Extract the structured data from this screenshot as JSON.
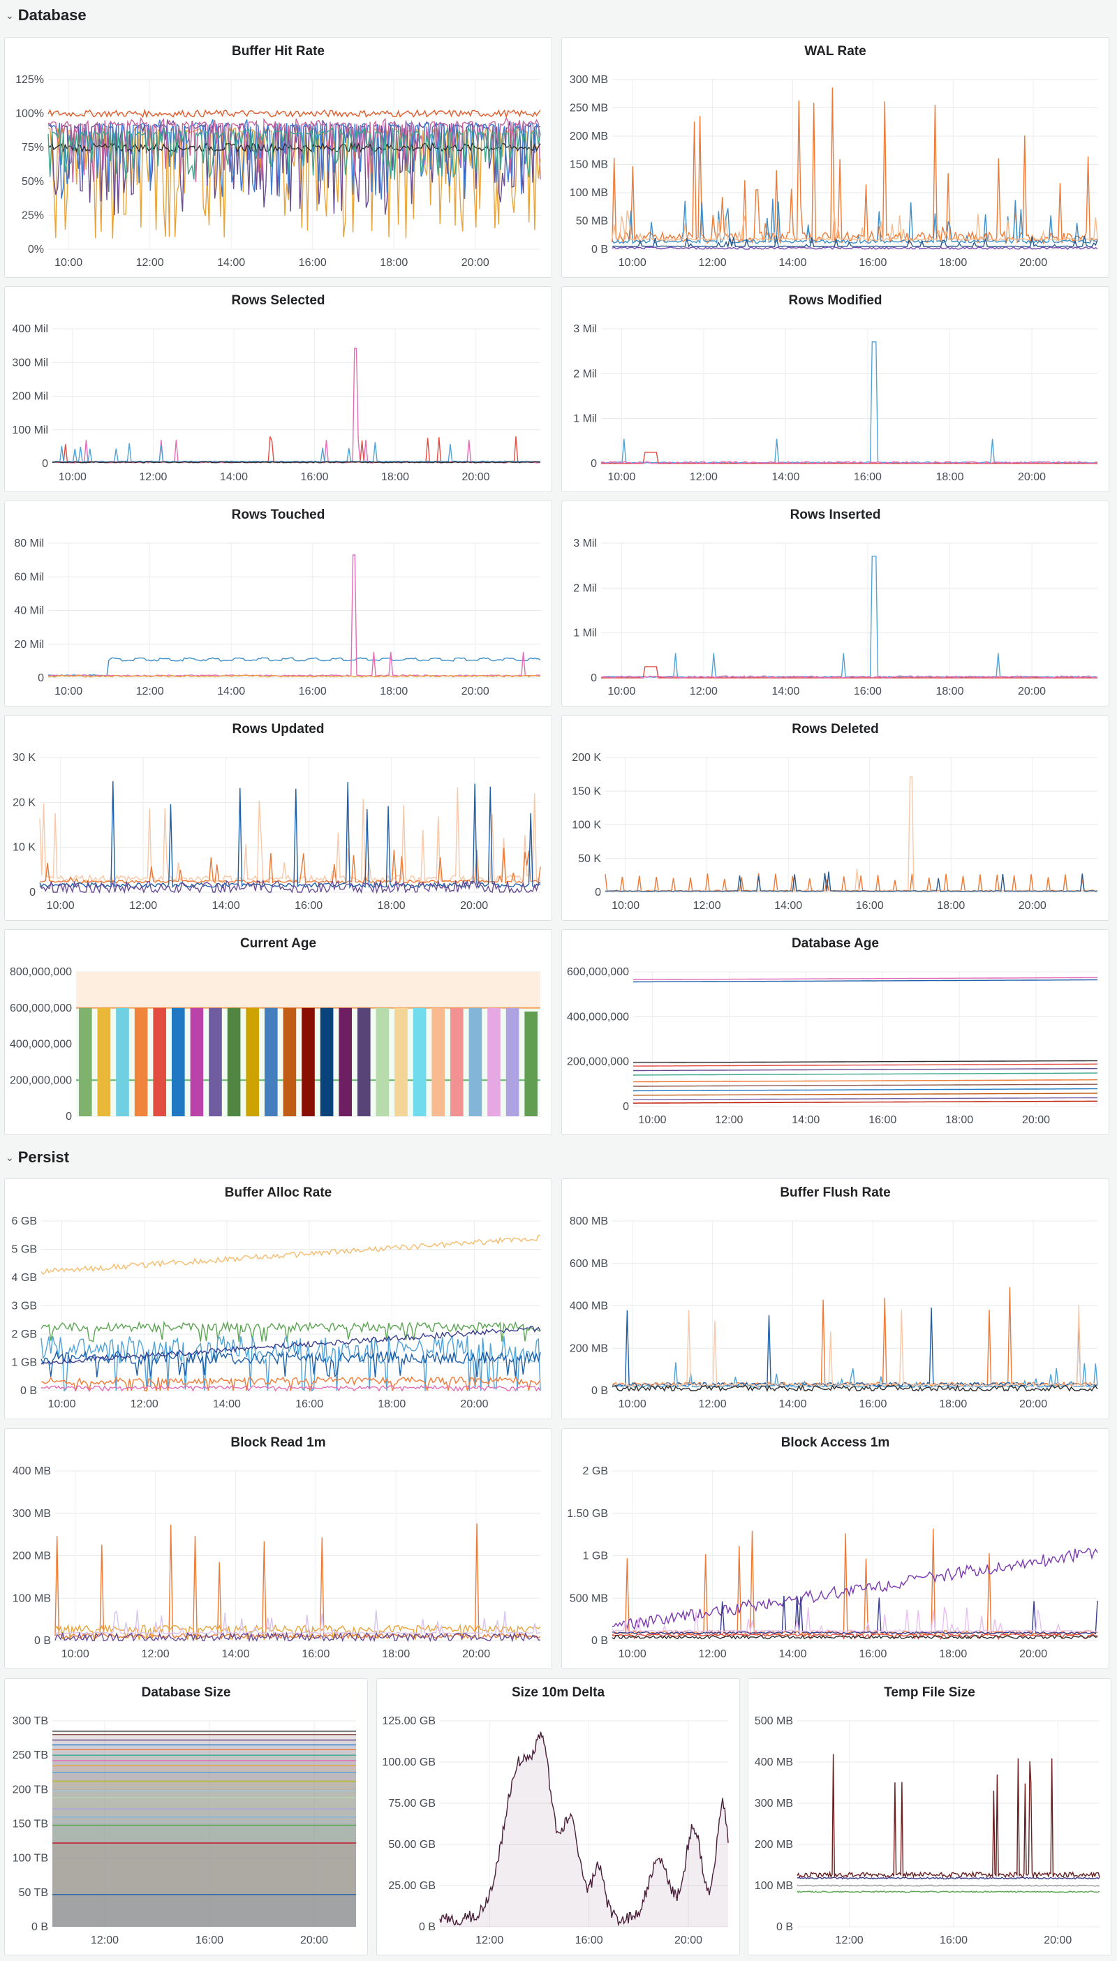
{
  "rows": [
    {
      "title": "Database",
      "chevron_icon": "chevron-down-icon"
    },
    {
      "title": "Persist",
      "chevron_icon": "chevron-down-icon"
    }
  ],
  "chart_data": [
    {
      "id": "p1",
      "type": "line",
      "title": "Buffer Hit Rate",
      "yticks": [
        "0%",
        "25%",
        "50%",
        "75%",
        "100%",
        "125%"
      ],
      "ylim": [
        0,
        125
      ],
      "xticks": [
        "10:00",
        "12:00",
        "14:00",
        "16:00",
        "18:00",
        "20:00"
      ],
      "xlim": [
        9.5,
        21.6
      ],
      "series": [
        {
          "color": "#e8a33a",
          "base": 92,
          "amp": 85,
          "spikes": "down"
        },
        {
          "color": "#6a4c93",
          "base": 95,
          "amp": 70,
          "spikes": "down"
        },
        {
          "color": "#3a7bd5",
          "base": 96,
          "amp": 60,
          "spikes": "down"
        },
        {
          "color": "#c9639b",
          "base": 97,
          "amp": 50,
          "spikes": "down"
        },
        {
          "color": "#2f2f2f",
          "base": 75,
          "amp": 6,
          "spikes": "none"
        },
        {
          "color": "#e05c2b",
          "base": 100,
          "amp": 5,
          "spikes": "none"
        },
        {
          "color": "#3ca58b",
          "base": 90,
          "amp": 40,
          "spikes": "down"
        }
      ]
    },
    {
      "id": "p2",
      "type": "line",
      "title": "WAL Rate",
      "yticks": [
        "0 B",
        "50 MB",
        "100 MB",
        "150 MB",
        "200 MB",
        "250 MB",
        "300 MB"
      ],
      "ylim": [
        0,
        300
      ],
      "xticks": [
        "10:00",
        "12:00",
        "14:00",
        "16:00",
        "18:00",
        "20:00"
      ],
      "xlim": [
        9.5,
        21.6
      ],
      "series": [
        {
          "color": "#ee7a36",
          "base": 8,
          "amp": 280,
          "spikes": "up"
        },
        {
          "color": "#3d8fc9",
          "base": 10,
          "amp": 80,
          "spikes": "up"
        },
        {
          "color": "#f5bc8e",
          "base": 15,
          "amp": 60,
          "spikes": "up"
        },
        {
          "color": "#2b5a8c",
          "base": 4,
          "amp": 20,
          "spikes": "up"
        },
        {
          "color": "#7a4ab0",
          "base": 2,
          "amp": 4,
          "spikes": "none"
        }
      ]
    },
    {
      "id": "p3",
      "type": "line",
      "title": "Rows Selected",
      "yticks": [
        "0",
        "100 Mil",
        "200 Mil",
        "300 Mil",
        "400 Mil"
      ],
      "ylim": [
        0,
        400
      ],
      "xticks": [
        "10:00",
        "12:00",
        "14:00",
        "16:00",
        "18:00",
        "20:00"
      ],
      "xlim": [
        9.5,
        21.6
      ],
      "series": [
        {
          "color": "#e24d42",
          "base": 3,
          "amp": 90,
          "spikes": "rare"
        },
        {
          "color": "#e36cb6",
          "base": 2,
          "amp": 340,
          "spikes": "one"
        },
        {
          "color": "#4fa3d8",
          "base": 5,
          "amp": 60,
          "spikes": "rare"
        },
        {
          "color": "#2f2f2f",
          "base": 4,
          "amp": 3,
          "spikes": "none"
        }
      ]
    },
    {
      "id": "p4",
      "type": "line",
      "title": "Rows Modified",
      "yticks": [
        "0",
        "1 Mil",
        "2 Mil",
        "3 Mil"
      ],
      "ylim": [
        0,
        3
      ],
      "xticks": [
        "10:00",
        "12:00",
        "14:00",
        "16:00",
        "18:00",
        "20:00"
      ],
      "xlim": [
        9.5,
        21.6
      ],
      "series": [
        {
          "color": "#4fa3d8",
          "base": 0.01,
          "amp": 2.7,
          "spikes": "one"
        },
        {
          "color": "#e24d42",
          "base": 0.0,
          "amp": 0.25,
          "spikes": "bump"
        },
        {
          "color": "#e36cb6",
          "base": 0.02,
          "amp": 0.05,
          "spikes": "none"
        }
      ]
    },
    {
      "id": "p5",
      "type": "line",
      "title": "Rows Touched",
      "yticks": [
        "0",
        "20 Mil",
        "40 Mil",
        "60 Mil",
        "80 Mil"
      ],
      "ylim": [
        0,
        80
      ],
      "xticks": [
        "10:00",
        "12:00",
        "14:00",
        "16:00",
        "18:00",
        "20:00"
      ],
      "xlim": [
        9.5,
        21.6
      ],
      "series": [
        {
          "color": "#3d8fc9",
          "base": 10,
          "amp": 4,
          "spikes": "square"
        },
        {
          "color": "#e36cb6",
          "base": 1,
          "amp": 72,
          "spikes": "one"
        },
        {
          "color": "#e8a33a",
          "base": 1,
          "amp": 1,
          "spikes": "none"
        }
      ]
    },
    {
      "id": "p6",
      "type": "line",
      "title": "Rows Inserted",
      "yticks": [
        "0",
        "1 Mil",
        "2 Mil",
        "3 Mil"
      ],
      "ylim": [
        0,
        3
      ],
      "xticks": [
        "10:00",
        "12:00",
        "14:00",
        "16:00",
        "18:00",
        "20:00"
      ],
      "xlim": [
        9.5,
        21.6
      ],
      "series": [
        {
          "color": "#4fa3d8",
          "base": 0.01,
          "amp": 2.7,
          "spikes": "one"
        },
        {
          "color": "#e24d42",
          "base": 0.0,
          "amp": 0.25,
          "spikes": "bump"
        },
        {
          "color": "#e36cb6",
          "base": 0.02,
          "amp": 0.05,
          "spikes": "none"
        }
      ]
    },
    {
      "id": "p7",
      "type": "line",
      "title": "Rows Updated",
      "yticks": [
        "0",
        "10 K",
        "20 K",
        "30 K"
      ],
      "ylim": [
        0,
        30
      ],
      "xticks": [
        "10:00",
        "12:00",
        "14:00",
        "16:00",
        "18:00",
        "20:00"
      ],
      "xlim": [
        9.5,
        21.6
      ],
      "series": [
        {
          "color": "#f8c8a8",
          "base": 2,
          "amp": 22,
          "spikes": "up"
        },
        {
          "color": "#ee7a36",
          "base": 2,
          "amp": 8,
          "spikes": "up"
        },
        {
          "color": "#1f5fa8",
          "base": 1,
          "amp": 27,
          "spikes": "rare"
        },
        {
          "color": "#6a4c93",
          "base": 1,
          "amp": 3,
          "spikes": "none"
        }
      ]
    },
    {
      "id": "p8",
      "type": "line",
      "title": "Rows Deleted",
      "yticks": [
        "0",
        "50 K",
        "100 K",
        "150 K",
        "200 K"
      ],
      "ylim": [
        0,
        200
      ],
      "xticks": [
        "10:00",
        "12:00",
        "14:00",
        "16:00",
        "18:00",
        "20:00"
      ],
      "xlim": [
        9.5,
        21.6
      ],
      "series": [
        {
          "color": "#ee7a36",
          "base": 1,
          "amp": 28,
          "spikes": "periodic"
        },
        {
          "color": "#f8c8a8",
          "base": 1,
          "amp": 170,
          "spikes": "one"
        },
        {
          "color": "#2b5a8c",
          "base": 1,
          "amp": 30,
          "spikes": "rare"
        }
      ]
    },
    {
      "id": "p9",
      "type": "bar",
      "title": "Current Age",
      "yticks": [
        "0",
        "200,000,000",
        "400,000,000",
        "600,000,000",
        "800,000,000"
      ],
      "ylim": [
        0,
        800000000
      ],
      "thresholds": [
        {
          "value": 600000000,
          "color": "#f2a25f"
        },
        {
          "value": 200000000,
          "color": "#5fb76a"
        }
      ],
      "values": [
        600000000,
        600000000,
        600000000,
        600000000,
        600000000,
        600000000,
        600000000,
        600000000,
        600000000,
        600000000,
        600000000,
        600000000,
        600000000,
        600000000,
        600000000,
        600000000,
        600000000,
        600000000,
        600000000,
        600000000,
        600000000,
        600000000,
        600000000,
        600000000,
        580000000
      ],
      "colors": [
        "#7eb26d",
        "#eab839",
        "#6ed0e0",
        "#ef843c",
        "#e24d42",
        "#1f78c1",
        "#ba43a9",
        "#705da0",
        "#508642",
        "#cca300",
        "#447ebc",
        "#c15c17",
        "#890f02",
        "#0a437c",
        "#6d1f62",
        "#584477",
        "#b7dbab",
        "#f4d598",
        "#70dbed",
        "#f9ba8f",
        "#f29191",
        "#82b5d8",
        "#e5a8e2",
        "#aea2e0",
        "#629e51",
        "#e5ac0e",
        "#64b0c8",
        "#e0752d",
        "#bf1b00",
        "#0a50a1"
      ]
    },
    {
      "id": "p10",
      "type": "line",
      "title": "Database Age",
      "yticks": [
        "0",
        "200,000,000",
        "400,000,000",
        "600,000,000"
      ],
      "ylim": [
        0,
        600000000
      ],
      "xticks": [
        "10:00",
        "12:00",
        "14:00",
        "16:00",
        "18:00",
        "20:00"
      ],
      "xlim": [
        9.5,
        21.6
      ],
      "series": [
        {
          "color": "#1f5fa8",
          "base": 555000000,
          "amp": 0,
          "spikes": "flat"
        },
        {
          "color": "#e36cb6",
          "base": 565000000,
          "amp": 0,
          "spikes": "flat"
        },
        {
          "color": "#2f2f2f",
          "base": 195000000,
          "amp": 0,
          "spikes": "flat"
        },
        {
          "color": "#e24d42",
          "base": 180000000,
          "amp": 0,
          "spikes": "flat"
        },
        {
          "color": "#6a4c93",
          "base": 160000000,
          "amp": 0,
          "spikes": "flat"
        },
        {
          "color": "#3ca58b",
          "base": 140000000,
          "amp": 0,
          "spikes": "flat"
        },
        {
          "color": "#ee7a36",
          "base": 110000000,
          "amp": 0,
          "spikes": "flat"
        },
        {
          "color": "#8c564b",
          "base": 90000000,
          "amp": 0,
          "spikes": "flat"
        },
        {
          "color": "#1f78c1",
          "base": 70000000,
          "amp": 0,
          "spikes": "flat"
        },
        {
          "color": "#c15c17",
          "base": 50000000,
          "amp": 0,
          "spikes": "flat"
        },
        {
          "color": "#705da0",
          "base": 30000000,
          "amp": 0,
          "spikes": "flat"
        },
        {
          "color": "#bf1b00",
          "base": 15000000,
          "amp": 0,
          "spikes": "flat"
        }
      ]
    },
    {
      "id": "p11",
      "type": "line",
      "title": "Buffer Alloc Rate",
      "yticks": [
        "0 B",
        "1 GB",
        "2 GB",
        "3 GB",
        "4 GB",
        "5 GB",
        "6 GB"
      ],
      "ylim": [
        0,
        6
      ],
      "xticks": [
        "10:00",
        "12:00",
        "14:00",
        "16:00",
        "18:00",
        "20:00"
      ],
      "xlim": [
        9.5,
        21.6
      ],
      "series": [
        {
          "color": "#f5bc6e",
          "base": 4.2,
          "amp": 0.2,
          "spikes": "trend"
        },
        {
          "color": "#5ba552",
          "base": 2.2,
          "amp": 0.6,
          "spikes": "noise"
        },
        {
          "color": "#4fa3d8",
          "base": 1.3,
          "amp": 1.8,
          "spikes": "noise"
        },
        {
          "color": "#1f5fa8",
          "base": 1.1,
          "amp": 0.8,
          "spikes": "noise"
        },
        {
          "color": "#3a3f8f",
          "base": 1.0,
          "amp": 0.2,
          "spikes": "trend"
        },
        {
          "color": "#ee7a36",
          "base": 0.3,
          "amp": 0.5,
          "spikes": "noise"
        },
        {
          "color": "#e36cb6",
          "base": 0.1,
          "amp": 0.2,
          "spikes": "noise"
        }
      ]
    },
    {
      "id": "p12",
      "type": "line",
      "title": "Buffer Flush Rate",
      "yticks": [
        "0 B",
        "200 MB",
        "400 MB",
        "600 MB",
        "800 MB"
      ],
      "ylim": [
        0,
        800
      ],
      "xticks": [
        "10:00",
        "12:00",
        "14:00",
        "16:00",
        "18:00",
        "20:00"
      ],
      "xlim": [
        9.5,
        21.6
      ],
      "series": [
        {
          "color": "#ee7a36",
          "base": 20,
          "amp": 500,
          "spikes": "rare"
        },
        {
          "color": "#1f5fa8",
          "base": 20,
          "amp": 450,
          "spikes": "rare"
        },
        {
          "color": "#4fa3d8",
          "base": 15,
          "amp": 120,
          "spikes": "up"
        },
        {
          "color": "#f8c8a8",
          "base": 20,
          "amp": 400,
          "spikes": "rare"
        },
        {
          "color": "#2f2f2f",
          "base": 10,
          "amp": 30,
          "spikes": "none"
        }
      ]
    },
    {
      "id": "p13",
      "type": "line",
      "title": "Block Read 1m",
      "yticks": [
        "0 B",
        "100 MB",
        "200 MB",
        "300 MB",
        "400 MB"
      ],
      "ylim": [
        0,
        400
      ],
      "xticks": [
        "10:00",
        "12:00",
        "14:00",
        "16:00",
        "18:00",
        "20:00"
      ],
      "xlim": [
        9.5,
        21.6
      ],
      "series": [
        {
          "color": "#ee7a36",
          "base": 5,
          "amp": 290,
          "spikes": "rare"
        },
        {
          "color": "#e8a33a",
          "base": 25,
          "amp": 30,
          "spikes": "noise"
        },
        {
          "color": "#d9c3ef",
          "base": 15,
          "amp": 60,
          "spikes": "up"
        },
        {
          "color": "#6a4c93",
          "base": 8,
          "amp": 20,
          "spikes": "none"
        }
      ]
    },
    {
      "id": "p14",
      "type": "line",
      "title": "Block Access 1m",
      "yticks": [
        "0 B",
        "500 MB",
        "1 GB",
        "1.50 GB",
        "2 GB"
      ],
      "ylim": [
        0,
        2000
      ],
      "xticks": [
        "10:00",
        "12:00",
        "14:00",
        "16:00",
        "18:00",
        "20:00"
      ],
      "xlim": [
        9.5,
        21.6
      ],
      "series": [
        {
          "color": "#ee7a36",
          "base": 60,
          "amp": 1400,
          "spikes": "rare"
        },
        {
          "color": "#7b3ab0",
          "base": 150,
          "amp": 150,
          "spikes": "trend"
        },
        {
          "color": "#3a3f8f",
          "base": 80,
          "amp": 600,
          "spikes": "rare"
        },
        {
          "color": "#e8c0ef",
          "base": 100,
          "amp": 300,
          "spikes": "up"
        },
        {
          "color": "#e24d42",
          "base": 60,
          "amp": 50,
          "spikes": "noise"
        },
        {
          "color": "#2f2f2f",
          "base": 40,
          "amp": 40,
          "spikes": "none"
        }
      ]
    },
    {
      "id": "p15",
      "type": "area",
      "title": "Database Size",
      "yticks": [
        "0 B",
        "50 TB",
        "100 TB",
        "150 TB",
        "200 TB",
        "250 TB",
        "300 TB"
      ],
      "ylim": [
        0,
        300
      ],
      "xticks": [
        "12:00",
        "16:00",
        "20:00"
      ],
      "xlim": [
        10.0,
        21.6
      ],
      "series": [
        {
          "color": "#2f2f2f",
          "base": 285,
          "amp": 0
        },
        {
          "color": "#8c564b",
          "base": 280,
          "amp": 0
        },
        {
          "color": "#6a4c93",
          "base": 272,
          "amp": 0
        },
        {
          "color": "#1f78c1",
          "base": 265,
          "amp": 0
        },
        {
          "color": "#ee7a36",
          "base": 258,
          "amp": 0
        },
        {
          "color": "#3ca58b",
          "base": 250,
          "amp": 0
        },
        {
          "color": "#e36cb6",
          "base": 242,
          "amp": 0
        },
        {
          "color": "#e8a33a",
          "base": 235,
          "amp": 0
        },
        {
          "color": "#4fa3d8",
          "base": 225,
          "amp": 0
        },
        {
          "color": "#bcbd22",
          "base": 212,
          "amp": 0
        },
        {
          "color": "#9ecae1",
          "base": 198,
          "amp": 0
        },
        {
          "color": "#b7dbab",
          "base": 188,
          "amp": 0
        },
        {
          "color": "#aea2e0",
          "base": 172,
          "amp": 0
        },
        {
          "color": "#82b5d8",
          "base": 160,
          "amp": 0
        },
        {
          "color": "#5ba552",
          "base": 148,
          "amp": 0
        },
        {
          "color": "#c4162a",
          "base": 122,
          "amp": 0
        },
        {
          "color": "#1f5fa8",
          "base": 47,
          "amp": 0
        }
      ]
    },
    {
      "id": "p16",
      "type": "area",
      "title": "Size 10m Delta",
      "yticks": [
        "0 B",
        "25.00 GB",
        "50.00 GB",
        "75.00 GB",
        "100.00 GB",
        "125.00 GB"
      ],
      "ylim": [
        0,
        125
      ],
      "xticks": [
        "12:00",
        "16:00",
        "20:00"
      ],
      "xlim": [
        10.0,
        21.6
      ],
      "series": [
        {
          "color": "#4a1f3a",
          "base": 20,
          "amp": 0,
          "spikes": "delta"
        }
      ]
    },
    {
      "id": "p17",
      "type": "line",
      "title": "Temp File Size",
      "yticks": [
        "0 B",
        "100 MB",
        "200 MB",
        "300 MB",
        "400 MB",
        "500 MB"
      ],
      "ylim": [
        0,
        500
      ],
      "xticks": [
        "12:00",
        "16:00",
        "20:00"
      ],
      "xlim": [
        10.0,
        21.6
      ],
      "series": [
        {
          "color": "#9e9e9e",
          "base": 100,
          "amp": 3,
          "spikes": "none"
        },
        {
          "color": "#5ba552",
          "base": 85,
          "amp": 3,
          "spikes": "none"
        },
        {
          "color": "#3a3f8f",
          "base": 118,
          "amp": 4,
          "spikes": "none"
        },
        {
          "color": "#6b1f1f",
          "base": 120,
          "amp": 310,
          "spikes": "rare"
        }
      ]
    }
  ]
}
